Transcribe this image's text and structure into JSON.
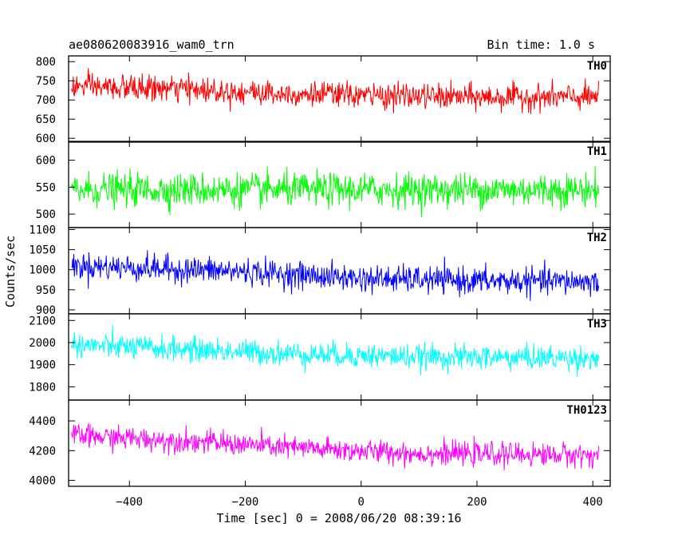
{
  "header": {
    "title": "ae080620083916_wam0_trn",
    "bin_time": "Bin time: 1.0 s"
  },
  "chart_data": {
    "type": "line",
    "xlabel": "Time [sec] 0 = 2008/06/20 08:39:16",
    "ylabel": "Counts/sec",
    "xlim": [
      -505,
      430
    ],
    "x_ticks": [
      -400,
      -200,
      0,
      200,
      400
    ],
    "x_tick_labels": [
      "−400",
      "−200",
      "0",
      "200",
      "400"
    ],
    "data_x_range": [
      -500,
      410
    ],
    "bin_time_s": 1.0,
    "grid": false,
    "panels": [
      {
        "label": "TH0",
        "color": "#ff0000",
        "ylim": [
          590,
          815
        ],
        "y_ticks": [
          600,
          650,
          700,
          750,
          800
        ],
        "profile": [
          [
            -500,
            735
          ],
          [
            -300,
            728
          ],
          [
            -150,
            718
          ],
          [
            0,
            712
          ],
          [
            200,
            707
          ],
          [
            410,
            707
          ]
        ],
        "scatter": 30,
        "value_range": [
          600,
          815
        ]
      },
      {
        "label": "TH1",
        "color": "#00ff00",
        "ylim": [
          475,
          635
        ],
        "y_ticks": [
          500,
          550,
          600
        ],
        "profile": [
          [
            -500,
            545
          ],
          [
            410,
            545
          ]
        ],
        "scatter": 28,
        "value_range": [
          478,
          630
        ]
      },
      {
        "label": "TH2",
        "color": "#0000ff",
        "ylim": [
          890,
          1105
        ],
        "y_ticks": [
          900,
          950,
          1000,
          1050,
          1100
        ],
        "profile": [
          [
            -500,
            1010
          ],
          [
            -200,
            995
          ],
          [
            0,
            978
          ],
          [
            200,
            972
          ],
          [
            410,
            970
          ]
        ],
        "scatter": 30,
        "value_range": [
          895,
          1100
        ]
      },
      {
        "label": "TH3",
        "color": "#00ffff",
        "ylim": [
          1740,
          2130
        ],
        "y_ticks": [
          1800,
          1900,
          2000,
          2100
        ],
        "profile": [
          [
            -500,
            1990
          ],
          [
            -300,
            1968
          ],
          [
            -100,
            1948
          ],
          [
            100,
            1935
          ],
          [
            410,
            1930
          ]
        ],
        "scatter": 50,
        "value_range": [
          1770,
          2120
        ]
      },
      {
        "label": "TH0123",
        "color": "#ff00ff",
        "ylim": [
          3960,
          4540
        ],
        "y_ticks": [
          4000,
          4200,
          4400
        ],
        "profile": [
          [
            -500,
            4300
          ],
          [
            -300,
            4265
          ],
          [
            -100,
            4215
          ],
          [
            100,
            4180
          ],
          [
            410,
            4170
          ]
        ],
        "scatter": 70,
        "value_range": [
          3970,
          4520
        ]
      }
    ]
  }
}
